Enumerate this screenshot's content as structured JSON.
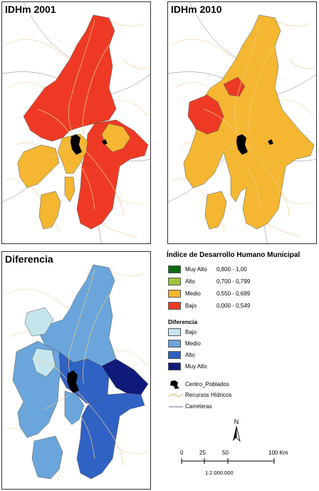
{
  "panels": {
    "idhm2001": {
      "title": "IDHm 2001"
    },
    "idhm2010": {
      "title": "IDHm 2010"
    },
    "diferencia": {
      "title": "Diferencia"
    }
  },
  "legend": {
    "idh_title": "Índice de Desarrollo Humano Municipal",
    "idh_classes": [
      {
        "label": "Muy Alto",
        "range": "0,800 - 1,00",
        "color": "#0a6b12"
      },
      {
        "label": "Alto",
        "range": "0,700 - 0,799",
        "color": "#9fc43a"
      },
      {
        "label": "Medio",
        "range": "0,550 - 0,699",
        "color": "#f5b731"
      },
      {
        "label": "Bajo",
        "range": "0,000 - 0,549",
        "color": "#ee3a24"
      }
    ],
    "dif_title": "Diferencia",
    "dif_classes": [
      {
        "label": "Bajo",
        "color": "#c6e6ee"
      },
      {
        "label": "Medio",
        "color": "#6aa6db"
      },
      {
        "label": "Alto",
        "color": "#2f62c4"
      },
      {
        "label": "Muy Alto",
        "color": "#101a7a"
      }
    ],
    "centro_poblados": "Centro_Poblados",
    "recursos_hidricos": "Recursos Hídricos",
    "carreteras": "Carreteras",
    "north": "N",
    "scale_ticks": [
      "0",
      "25",
      "50",
      "100 Km"
    ],
    "scale_ratio": "1:2.000.000"
  },
  "colors": {
    "rio": "#f0c98a",
    "carretera": "#6b6b8a",
    "urbano": "#000000",
    "border": "#555555"
  }
}
